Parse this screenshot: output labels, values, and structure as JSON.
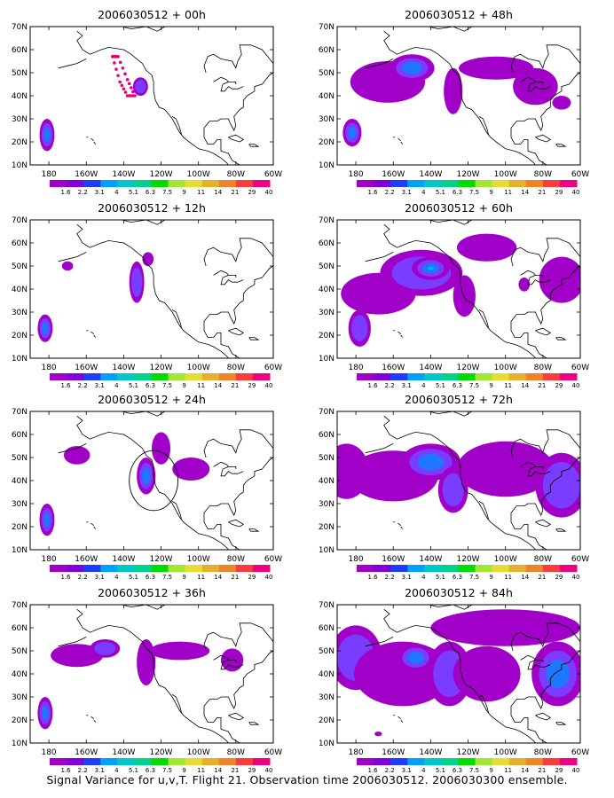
{
  "caption": "Signal Variance for u,v,T. Flight 21. Observation time 2006030512. 2006030300 ensemble.",
  "axes": {
    "lat_ticks": [
      "10N",
      "20N",
      "30N",
      "40N",
      "50N",
      "60N",
      "70N"
    ],
    "lon_ticks": [
      "180",
      "160W",
      "140W",
      "120W",
      "100W",
      "80W",
      "60W"
    ],
    "lon_range": [
      -190,
      -60
    ],
    "lat_range": [
      10,
      70
    ],
    "grid": true
  },
  "colorbar": {
    "labels": [
      "1.6",
      "2.2",
      "3.1",
      "4",
      "5.1",
      "6.3",
      "7.5",
      "9",
      "11",
      "14",
      "21",
      "29",
      "40"
    ],
    "colors": [
      "#a000c8",
      "#8200dc",
      "#1e3cff",
      "#00a0ff",
      "#00c8c8",
      "#00d28c",
      "#00dc00",
      "#a0e632",
      "#e6dc32",
      "#e6af2d",
      "#f08228",
      "#fa3c3c",
      "#f00082"
    ]
  },
  "colors": {
    "fill_outer": "#a000c8",
    "fill_mid": "#7a3cff",
    "fill_inner": "#1e78ff",
    "fill_core": "#00b4e6",
    "track": "#e6007e"
  },
  "chart_data": [
    {
      "type": "heatmap",
      "title": "2006030512 + 00h",
      "blobs": [
        {
          "lon": -181,
          "lat": 23,
          "rx": 4,
          "ry": 7,
          "level": 3
        },
        {
          "lon": -131,
          "lat": 44,
          "rx": 4,
          "ry": 4,
          "level": 2
        }
      ],
      "flight_track": [
        [
          -146,
          57
        ],
        [
          -143,
          57
        ],
        [
          -138,
          47
        ],
        [
          -134,
          40
        ],
        [
          -138,
          40
        ],
        [
          -142,
          46
        ]
      ]
    },
    {
      "type": "heatmap",
      "title": "2006030512 + 12h",
      "blobs": [
        {
          "lon": -182,
          "lat": 23,
          "rx": 4,
          "ry": 6,
          "level": 3
        },
        {
          "lon": -170,
          "lat": 50,
          "rx": 3,
          "ry": 2,
          "level": 1
        },
        {
          "lon": -133,
          "lat": 43,
          "rx": 4,
          "ry": 9,
          "level": 2
        },
        {
          "lon": -127,
          "lat": 53,
          "rx": 3,
          "ry": 3,
          "level": 1
        }
      ]
    },
    {
      "type": "heatmap",
      "title": "2006030512 + 24h",
      "blobs": [
        {
          "lon": -181,
          "lat": 23,
          "rx": 4,
          "ry": 7,
          "level": 3
        },
        {
          "lon": -165,
          "lat": 51,
          "rx": 7,
          "ry": 4,
          "level": 1
        },
        {
          "lon": -128,
          "lat": 42,
          "rx": 5,
          "ry": 8,
          "level": 3
        },
        {
          "lon": -120,
          "lat": 54,
          "rx": 5,
          "ry": 7,
          "level": 1
        },
        {
          "lon": -104,
          "lat": 45,
          "rx": 10,
          "ry": 5,
          "level": 1
        }
      ],
      "circle": {
        "lon": -124,
        "lat": 40,
        "r": 13
      }
    },
    {
      "type": "heatmap",
      "title": "2006030512 + 36h",
      "blobs": [
        {
          "lon": -182,
          "lat": 23,
          "rx": 4,
          "ry": 7,
          "level": 3
        },
        {
          "lon": -165,
          "lat": 48,
          "rx": 14,
          "ry": 5,
          "level": 1
        },
        {
          "lon": -150,
          "lat": 51,
          "rx": 8,
          "ry": 4,
          "level": 2
        },
        {
          "lon": -128,
          "lat": 45,
          "rx": 5,
          "ry": 10,
          "level": 1
        },
        {
          "lon": -110,
          "lat": 50,
          "rx": 16,
          "ry": 4,
          "level": 1
        },
        {
          "lon": -82,
          "lat": 46,
          "rx": 6,
          "ry": 5,
          "level": 1
        }
      ]
    },
    {
      "type": "heatmap",
      "title": "2006030512 + 48h",
      "blobs": [
        {
          "lon": -182,
          "lat": 24,
          "rx": 5,
          "ry": 6,
          "level": 3
        },
        {
          "lon": -163,
          "lat": 46,
          "rx": 20,
          "ry": 9,
          "level": 1
        },
        {
          "lon": -150,
          "lat": 52,
          "rx": 12,
          "ry": 6,
          "level": 3
        },
        {
          "lon": -128,
          "lat": 42,
          "rx": 5,
          "ry": 10,
          "level": 1
        },
        {
          "lon": -105,
          "lat": 52,
          "rx": 20,
          "ry": 5,
          "level": 1
        },
        {
          "lon": -84,
          "lat": 44,
          "rx": 12,
          "ry": 8,
          "level": 1
        },
        {
          "lon": -70,
          "lat": 37,
          "rx": 5,
          "ry": 3,
          "level": 1
        }
      ]
    },
    {
      "type": "heatmap",
      "title": "2006030512 + 60h",
      "blobs": [
        {
          "lon": -178,
          "lat": 23,
          "rx": 6,
          "ry": 8,
          "level": 2
        },
        {
          "lon": -168,
          "lat": 38,
          "rx": 20,
          "ry": 9,
          "level": 1
        },
        {
          "lon": -145,
          "lat": 47,
          "rx": 22,
          "ry": 10,
          "level": 2
        },
        {
          "lon": -140,
          "lat": 49,
          "rx": 10,
          "ry": 5,
          "level": 4
        },
        {
          "lon": -122,
          "lat": 37,
          "rx": 6,
          "ry": 9,
          "level": 1
        },
        {
          "lon": -110,
          "lat": 58,
          "rx": 16,
          "ry": 6,
          "level": 1
        },
        {
          "lon": -90,
          "lat": 42,
          "rx": 3,
          "ry": 3,
          "level": 1
        },
        {
          "lon": -70,
          "lat": 44,
          "rx": 12,
          "ry": 10,
          "level": 1
        }
      ]
    },
    {
      "type": "heatmap",
      "title": "2006030512 + 72h",
      "blobs": [
        {
          "lon": -185,
          "lat": 44,
          "rx": 12,
          "ry": 12,
          "level": 1
        },
        {
          "lon": -160,
          "lat": 42,
          "rx": 24,
          "ry": 11,
          "level": 1
        },
        {
          "lon": -140,
          "lat": 48,
          "rx": 16,
          "ry": 8,
          "level": 3
        },
        {
          "lon": -128,
          "lat": 36,
          "rx": 8,
          "ry": 10,
          "level": 2
        },
        {
          "lon": -100,
          "lat": 45,
          "rx": 26,
          "ry": 12,
          "level": 1
        },
        {
          "lon": -70,
          "lat": 38,
          "rx": 14,
          "ry": 14,
          "level": 2
        }
      ]
    },
    {
      "type": "heatmap",
      "title": "2006030512 + 84h",
      "blobs": [
        {
          "lon": -180,
          "lat": 47,
          "rx": 14,
          "ry": 14,
          "level": 2
        },
        {
          "lon": -155,
          "lat": 40,
          "rx": 26,
          "ry": 14,
          "level": 1
        },
        {
          "lon": -148,
          "lat": 47,
          "rx": 10,
          "ry": 6,
          "level": 3
        },
        {
          "lon": -130,
          "lat": 40,
          "rx": 12,
          "ry": 14,
          "level": 2
        },
        {
          "lon": -110,
          "lat": 40,
          "rx": 18,
          "ry": 12,
          "level": 1
        },
        {
          "lon": -100,
          "lat": 60,
          "rx": 40,
          "ry": 8,
          "level": 1
        },
        {
          "lon": -72,
          "lat": 40,
          "rx": 14,
          "ry": 14,
          "level": 3
        },
        {
          "lon": -168,
          "lat": 14,
          "rx": 2,
          "ry": 1,
          "level": 1
        }
      ]
    }
  ]
}
